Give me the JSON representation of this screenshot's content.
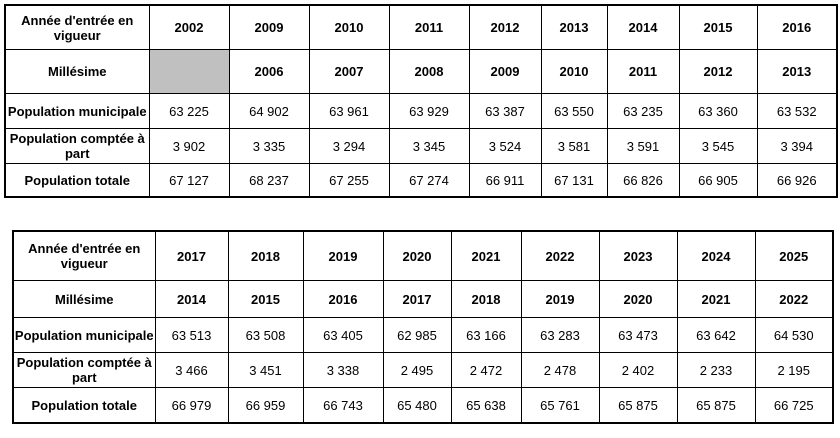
{
  "row_labels": {
    "annee": "Année d'entrée en vigueur",
    "millesime": "Millésime",
    "pop_municipale": "Population municipale",
    "pop_part": "Population comptée à part",
    "pop_totale": "Population totale"
  },
  "tables": [
    {
      "annee": [
        "2002",
        "2009",
        "2010",
        "2011",
        "2012",
        "2013",
        "2014",
        "2015",
        "2016"
      ],
      "millesime": [
        "",
        "2006",
        "2007",
        "2008",
        "2009",
        "2010",
        "2011",
        "2012",
        "2013"
      ],
      "pop_municipale": [
        "63 225",
        "64 902",
        "63 961",
        "63 929",
        "63 387",
        "63 550",
        "63 235",
        "63 360",
        "63 532"
      ],
      "pop_part": [
        "3 902",
        "3 335",
        "3 294",
        "3 345",
        "3 524",
        "3 581",
        "3 591",
        "3 545",
        "3 394"
      ],
      "pop_totale": [
        "67 127",
        "68 237",
        "67 255",
        "67 274",
        "66 911",
        "67 131",
        "66 826",
        "66 905",
        "66 926"
      ]
    },
    {
      "annee": [
        "2017",
        "2018",
        "2019",
        "2020",
        "2021",
        "2022",
        "2023",
        "2024",
        "2025"
      ],
      "millesime": [
        "2014",
        "2015",
        "2016",
        "2017",
        "2018",
        "2019",
        "2020",
        "2021",
        "2022"
      ],
      "pop_municipale": [
        "63 513",
        "63 508",
        "63 405",
        "62 985",
        "63 166",
        "63 283",
        "63 473",
        "63 642",
        "64 530"
      ],
      "pop_part": [
        "3 466",
        "3 451",
        "3 338",
        "2 495",
        "2 472",
        "2 478",
        "2 402",
        "2 233",
        "2 195"
      ],
      "pop_totale": [
        "66 979",
        "66 959",
        "66 743",
        "65 480",
        "65 638",
        "65 761",
        "65 875",
        "65 875",
        "66 725"
      ]
    }
  ],
  "colors": {
    "empty_cell": "#c0c0c0",
    "border": "#000000"
  }
}
